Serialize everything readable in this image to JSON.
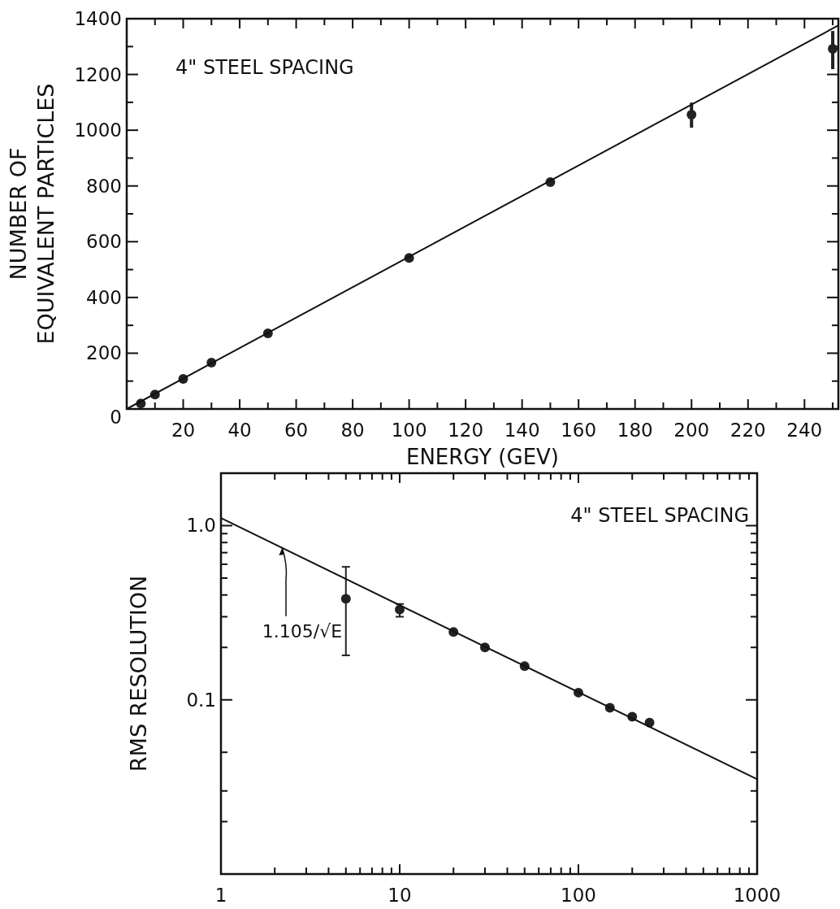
{
  "chart_data": [
    {
      "type": "scatter",
      "xlabel": "ENERGY  (GEV)",
      "ylabel": "NUMBER OF\nEQUIVALENT PARTICLES",
      "xlim": [
        0,
        252
      ],
      "ylim": [
        0,
        1400
      ],
      "xticks": [
        {
          "value": 10,
          "label": null
        },
        20,
        {
          "value": 30,
          "label": null
        },
        40,
        {
          "value": 50,
          "label": null
        },
        60,
        {
          "value": 70,
          "label": null
        },
        80,
        {
          "value": 90,
          "label": null
        },
        100,
        {
          "value": 110,
          "label": null
        },
        120,
        {
          "value": 130,
          "label": null
        },
        140,
        {
          "value": 150,
          "label": null
        },
        160,
        {
          "value": 170,
          "label": null
        },
        180,
        {
          "value": 190,
          "label": null
        },
        200,
        {
          "value": 210,
          "label": null
        },
        220,
        {
          "value": 230,
          "label": null
        },
        240,
        {
          "value": 250,
          "label": null
        }
      ],
      "yticks": [
        0,
        {
          "value": 100,
          "label": null
        },
        200,
        {
          "value": 300,
          "label": null
        },
        400,
        {
          "value": 500,
          "label": null
        },
        600,
        {
          "value": 700,
          "label": null
        },
        800,
        {
          "value": 900,
          "label": null
        },
        1000,
        {
          "value": 1100,
          "label": null
        },
        1200,
        {
          "value": 1300,
          "label": null
        },
        1400
      ],
      "series": [
        {
          "marker": "circle",
          "color": "#222222",
          "x": [
            5,
            10,
            20,
            30,
            50,
            100,
            150,
            200,
            250
          ],
          "values": [
            20,
            52,
            108,
            166,
            271,
            542,
            814,
            1056,
            1292
          ],
          "errors": [
            null,
            null,
            null,
            null,
            null,
            null,
            null,
            [
              1009,
              1099
            ],
            [
              1219,
              1356
            ]
          ]
        },
        {
          "type": "line",
          "color": "#111111",
          "x": [
            0,
            252
          ],
          "values": [
            0,
            1376
          ]
        }
      ],
      "annotations": [
        {
          "text": "4\" STEEL SPACING"
        }
      ]
    },
    {
      "type": "scatter",
      "ylabel": "RMS RESOLUTION",
      "log": "xy",
      "xlim": [
        1,
        1000
      ],
      "ylim": [
        0.01,
        2
      ],
      "xticks": [
        1,
        {
          "value": 2,
          "label": null
        },
        {
          "value": 3,
          "label": null
        },
        {
          "value": 4,
          "label": null
        },
        {
          "value": 5,
          "label": null
        },
        {
          "value": 6,
          "label": null
        },
        {
          "value": 7,
          "label": null
        },
        {
          "value": 8,
          "label": null
        },
        {
          "value": 9,
          "label": null
        },
        10,
        {
          "value": 20,
          "label": null
        },
        {
          "value": 30,
          "label": null
        },
        {
          "value": 40,
          "label": null
        },
        {
          "value": 50,
          "label": null
        },
        {
          "value": 60,
          "label": null
        },
        {
          "value": 70,
          "label": null
        },
        {
          "value": 80,
          "label": null
        },
        {
          "value": 90,
          "label": null
        },
        100,
        {
          "value": 200,
          "label": null
        },
        {
          "value": 300,
          "label": null
        },
        {
          "value": 400,
          "label": null
        },
        {
          "value": 500,
          "label": null
        },
        {
          "value": 600,
          "label": null
        },
        {
          "value": 700,
          "label": null
        },
        {
          "value": 800,
          "label": null
        },
        {
          "value": 900,
          "label": null
        },
        1000
      ],
      "yticks": [
        {
          "value": 0.02,
          "label": null
        },
        {
          "value": 0.03,
          "label": null
        },
        {
          "value": 0.05,
          "label": null
        },
        {
          "value": 0.1,
          "label": "0.1"
        },
        {
          "value": 0.2,
          "label": null
        },
        {
          "value": 0.3,
          "label": null
        },
        {
          "value": 0.4,
          "label": null
        },
        {
          "value": 0.5,
          "label": null
        },
        {
          "value": 0.6,
          "label": null
        },
        {
          "value": 0.7,
          "label": null
        },
        {
          "value": 0.8,
          "label": null
        },
        {
          "value": 0.9,
          "label": null
        },
        {
          "value": 1,
          "label": "1.0"
        },
        {
          "value": 2,
          "label": null
        }
      ],
      "series": [
        {
          "marker": "circle",
          "color": "#222222",
          "x": [
            5,
            10,
            20,
            30,
            50,
            100,
            150,
            200,
            250
          ],
          "values": [
            0.38,
            0.33,
            0.245,
            0.2,
            0.156,
            0.11,
            0.09,
            0.08,
            0.074
          ],
          "errors": [
            [
              0.18,
              0.58
            ],
            [
              0.3,
              0.355
            ],
            null,
            null,
            null,
            null,
            null,
            null,
            null
          ]
        },
        {
          "type": "line",
          "color": "#111111",
          "x": [
            1,
            1000
          ],
          "values": [
            1.105,
            0.035
          ]
        }
      ],
      "annotations": [
        {
          "text": "4\" STEEL SPACING"
        },
        {
          "text": "1.105/√E",
          "x": 2.2,
          "y": 0.745
        }
      ]
    }
  ]
}
